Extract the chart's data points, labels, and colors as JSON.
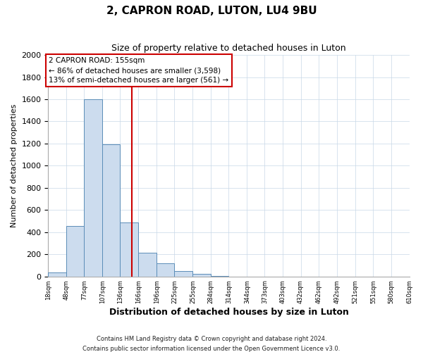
{
  "title": "2, CAPRON ROAD, LUTON, LU4 9BU",
  "subtitle": "Size of property relative to detached houses in Luton",
  "xlabel": "Distribution of detached houses by size in Luton",
  "ylabel": "Number of detached properties",
  "bar_color": "#ccdcee",
  "bar_edge_color": "#5b8db8",
  "annotation_box_color": "#ffffff",
  "annotation_box_edge": "#cc0000",
  "vline_color": "#cc0000",
  "grid_color": "#c8d8e8",
  "background_color": "#ffffff",
  "bins": [
    18,
    48,
    77,
    107,
    136,
    166,
    196,
    225,
    255,
    284,
    314,
    344,
    373,
    403,
    432,
    462,
    492,
    521,
    551,
    580,
    610
  ],
  "counts": [
    35,
    455,
    1600,
    1195,
    490,
    215,
    120,
    50,
    20,
    5,
    0,
    0,
    0,
    0,
    0,
    0,
    0,
    0,
    0,
    0
  ],
  "property_size": 155,
  "annotation_title": "2 CAPRON ROAD: 155sqm",
  "annotation_line1": "← 86% of detached houses are smaller (3,598)",
  "annotation_line2": "13% of semi-detached houses are larger (561) →",
  "ylim": [
    0,
    2000
  ],
  "yticks": [
    0,
    200,
    400,
    600,
    800,
    1000,
    1200,
    1400,
    1600,
    1800,
    2000
  ],
  "tick_labels": [
    "18sqm",
    "48sqm",
    "77sqm",
    "107sqm",
    "136sqm",
    "166sqm",
    "196sqm",
    "225sqm",
    "255sqm",
    "284sqm",
    "314sqm",
    "344sqm",
    "373sqm",
    "403sqm",
    "432sqm",
    "462sqm",
    "492sqm",
    "521sqm",
    "551sqm",
    "580sqm",
    "610sqm"
  ],
  "footer_line1": "Contains HM Land Registry data © Crown copyright and database right 2024.",
  "footer_line2": "Contains public sector information licensed under the Open Government Licence v3.0."
}
